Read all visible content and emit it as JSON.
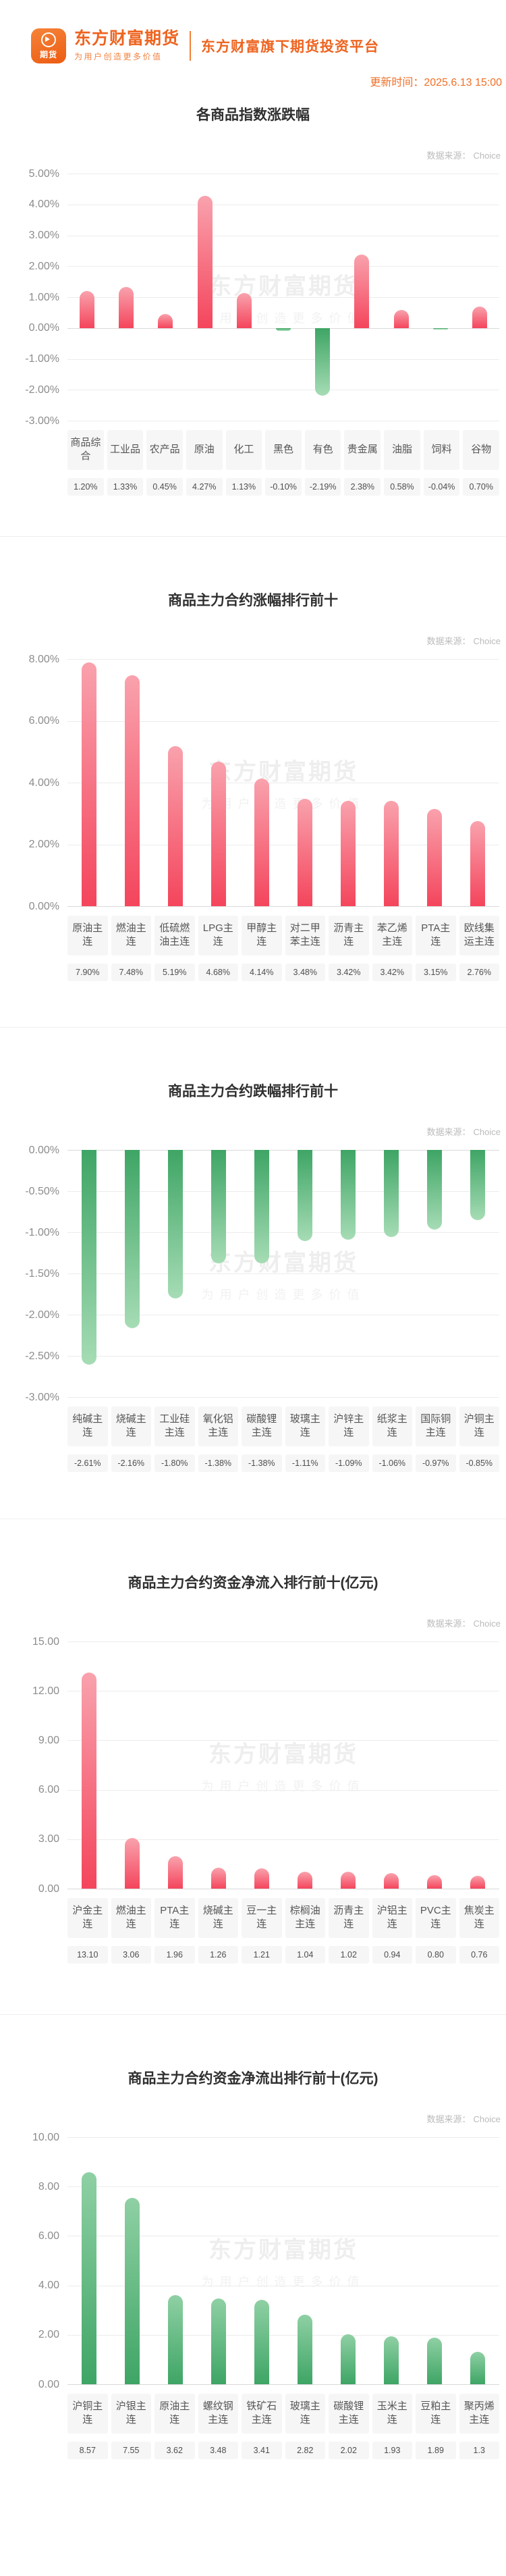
{
  "header": {
    "logo_text": "期货",
    "brand_title": "东方财富期货",
    "brand_subtitle": "为用户创造更多价值",
    "platform_title": "东方财富旗下期货投资平台",
    "update_label": "更新时间：",
    "update_time": "2025.6.13 15:00"
  },
  "source": {
    "label": "数据来源：",
    "value": "Choice"
  },
  "watermark": {
    "line1": "东方财富期货",
    "line2": "为用户创造更多价值"
  },
  "colors": {
    "brand_orange": "#ee6420",
    "rise_red": "#f4455c",
    "fall_green": "#3ea565",
    "title_text": "#2f2f2f",
    "axis_text": "#8c8c8c",
    "source_text": "#bbbbbb",
    "label_text": "#565656",
    "label_bg": "#f6f6f6"
  },
  "chart_data": [
    {
      "type": "bar",
      "title": "各商品指数涨跌幅",
      "palette": "sign",
      "ymax": 5,
      "ymin": -3,
      "grid": true,
      "legend": "none",
      "yticks": [
        "5.00%",
        "4.00%",
        "3.00%",
        "2.00%",
        "1.00%",
        "0.00%",
        "-1.00%",
        "-2.00%",
        "-3.00%"
      ],
      "categories": [
        "商品综合",
        "工业品",
        "农产品",
        "原油",
        "化工",
        "黑色",
        "有色",
        "贵金属",
        "油脂",
        "饲料",
        "谷物"
      ],
      "values": [
        1.2,
        1.33,
        0.45,
        4.27,
        1.13,
        -0.1,
        -2.19,
        2.38,
        0.58,
        -0.04,
        0.7
      ],
      "value_labels": [
        "1.20%",
        "1.33%",
        "0.45%",
        "4.27%",
        "1.13%",
        "-0.10%",
        "-2.19%",
        "2.38%",
        "0.58%",
        "-0.04%",
        "0.70%"
      ]
    },
    {
      "type": "bar",
      "title": "商品主力合约涨幅排行前十",
      "palette": "red",
      "ymax": 8,
      "ymin": 0,
      "grid": true,
      "legend": "none",
      "yticks": [
        "8.00%",
        "6.00%",
        "4.00%",
        "2.00%",
        "0.00%"
      ],
      "categories": [
        "原油主连",
        "燃油主连",
        "低硫燃油主连",
        "LPG主连",
        "甲醇主连",
        "对二甲苯主连",
        "沥青主连",
        "苯乙烯主连",
        "PTA主连",
        "欧线集运主连"
      ],
      "values": [
        7.9,
        7.48,
        5.19,
        4.68,
        4.14,
        3.48,
        3.42,
        3.42,
        3.15,
        2.76
      ],
      "value_labels": [
        "7.90%",
        "7.48%",
        "5.19%",
        "4.68%",
        "4.14%",
        "3.48%",
        "3.42%",
        "3.42%",
        "3.15%",
        "2.76%"
      ]
    },
    {
      "type": "bar",
      "title": "商品主力合约跌幅排行前十",
      "palette": "green",
      "ymax": 0,
      "ymin": -3,
      "grid": true,
      "legend": "none",
      "yticks": [
        "0.00%",
        "-0.50%",
        "-1.00%",
        "-1.50%",
        "-2.00%",
        "-2.50%",
        "-3.00%"
      ],
      "categories": [
        "纯碱主连",
        "烧碱主连",
        "工业硅主连",
        "氧化铝主连",
        "碳酸锂主连",
        "玻璃主连",
        "沪锌主连",
        "纸浆主连",
        "国际铜主连",
        "沪铜主连"
      ],
      "values": [
        -2.61,
        -2.16,
        -1.8,
        -1.38,
        -1.38,
        -1.11,
        -1.09,
        -1.06,
        -0.97,
        -0.85
      ],
      "value_labels": [
        "-2.61%",
        "-2.16%",
        "-1.80%",
        "-1.38%",
        "-1.38%",
        "-1.11%",
        "-1.09%",
        "-1.06%",
        "-0.97%",
        "-0.85%"
      ]
    },
    {
      "type": "bar",
      "title": "商品主力合约资金净流入排行前十(亿元)",
      "palette": "red",
      "ymax": 15,
      "ymin": 0,
      "grid": true,
      "legend": "none",
      "yticks": [
        "15.00",
        "12.00",
        "9.00",
        "6.00",
        "3.00",
        "0.00"
      ],
      "categories": [
        "沪金主连",
        "燃油主连",
        "PTA主连",
        "烧碱主连",
        "豆一主连",
        "棕榈油主连",
        "沥青主连",
        "沪铝主连",
        "PVC主连",
        "焦炭主连"
      ],
      "values": [
        13.1,
        3.06,
        1.96,
        1.26,
        1.21,
        1.04,
        1.02,
        0.94,
        0.8,
        0.76
      ],
      "value_labels": [
        "13.10",
        "3.06",
        "1.96",
        "1.26",
        "1.21",
        "1.04",
        "1.02",
        "0.94",
        "0.80",
        "0.76"
      ]
    },
    {
      "type": "bar",
      "title": "商品主力合约资金净流出排行前十(亿元)",
      "palette": "green",
      "ymax": 10,
      "ymin": 0,
      "grid": true,
      "legend": "none",
      "yticks": [
        "10.00",
        "8.00",
        "6.00",
        "4.00",
        "2.00",
        "0.00"
      ],
      "categories": [
        "沪铜主连",
        "沪银主连",
        "原油主连",
        "螺纹钢主连",
        "铁矿石主连",
        "玻璃主连",
        "碳酸锂主连",
        "玉米主连",
        "豆粕主连",
        "聚丙烯主连"
      ],
      "values": [
        8.57,
        7.55,
        3.62,
        3.48,
        3.41,
        2.82,
        2.02,
        1.93,
        1.89,
        1.3
      ],
      "value_labels": [
        "8.57",
        "7.55",
        "3.62",
        "3.48",
        "3.41",
        "2.82",
        "2.02",
        "1.93",
        "1.89",
        "1.3"
      ]
    }
  ]
}
